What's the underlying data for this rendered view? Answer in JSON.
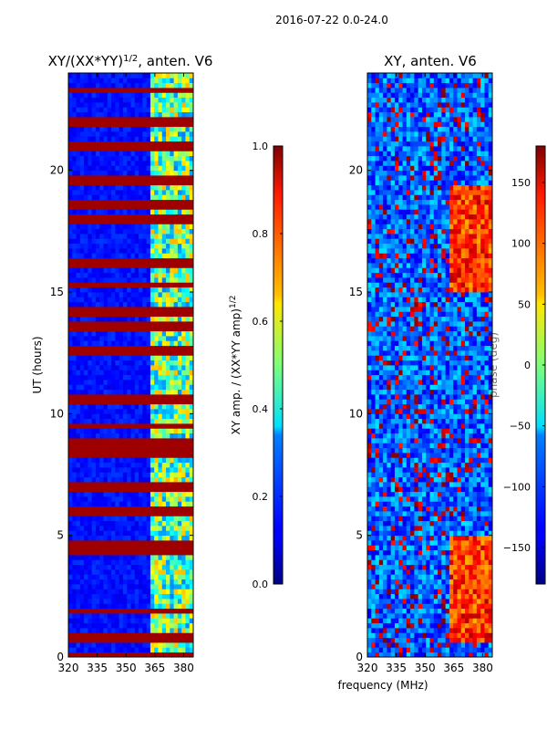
{
  "figure": {
    "suptitle": "2016-07-22 0.0-24.0",
    "xlabel_shared": "frequency (MHz)"
  },
  "chart_data": [
    {
      "type": "heatmap",
      "title": "XY/(XX*YY)",
      "title_superscript": "1/2",
      "title_suffix": ", anten. V6",
      "xlabel": "",
      "ylabel": "UT (hours)",
      "xlim": [
        320,
        385
      ],
      "ylim": [
        0,
        24
      ],
      "xticks": [
        320,
        335,
        350,
        365,
        380
      ],
      "yticks": [
        0,
        5,
        10,
        15,
        20
      ],
      "colormap": "jet",
      "colorbar": {
        "label": "XY amp. / (XX*YY amp)",
        "label_superscript": "1/2",
        "range": [
          0.0,
          1.0
        ],
        "ticks": [
          0.0,
          0.2,
          0.4,
          0.6,
          0.8,
          1.0
        ],
        "tick_labels": [
          "0.0",
          "0.2",
          "0.4",
          "0.6",
          "0.8",
          "1.0"
        ]
      },
      "description": "mostly low values (~0.1) with saturated red horizontal bands; high (~0.4-0.6) values in 363-380 MHz"
    },
    {
      "type": "heatmap",
      "title": "XY, anten. V6",
      "xlabel": "",
      "ylabel": "",
      "xlim": [
        320,
        385
      ],
      "ylim": [
        0,
        24
      ],
      "xticks": [
        320,
        335,
        350,
        365,
        380
      ],
      "yticks": [
        0,
        5,
        10,
        15,
        20
      ],
      "colormap": "jet",
      "colorbar": {
        "label": "phase (deg)",
        "range": [
          -180,
          180
        ],
        "ticks": [
          -150,
          -100,
          -50,
          0,
          50,
          100,
          150
        ],
        "tick_labels": [
          "−150",
          "−100",
          "−50",
          "0",
          "50",
          "100",
          "150"
        ]
      },
      "description": "noisy phase with large positive (red) regions near 365-380 MHz at 0-5 h and 15-19 h"
    }
  ]
}
